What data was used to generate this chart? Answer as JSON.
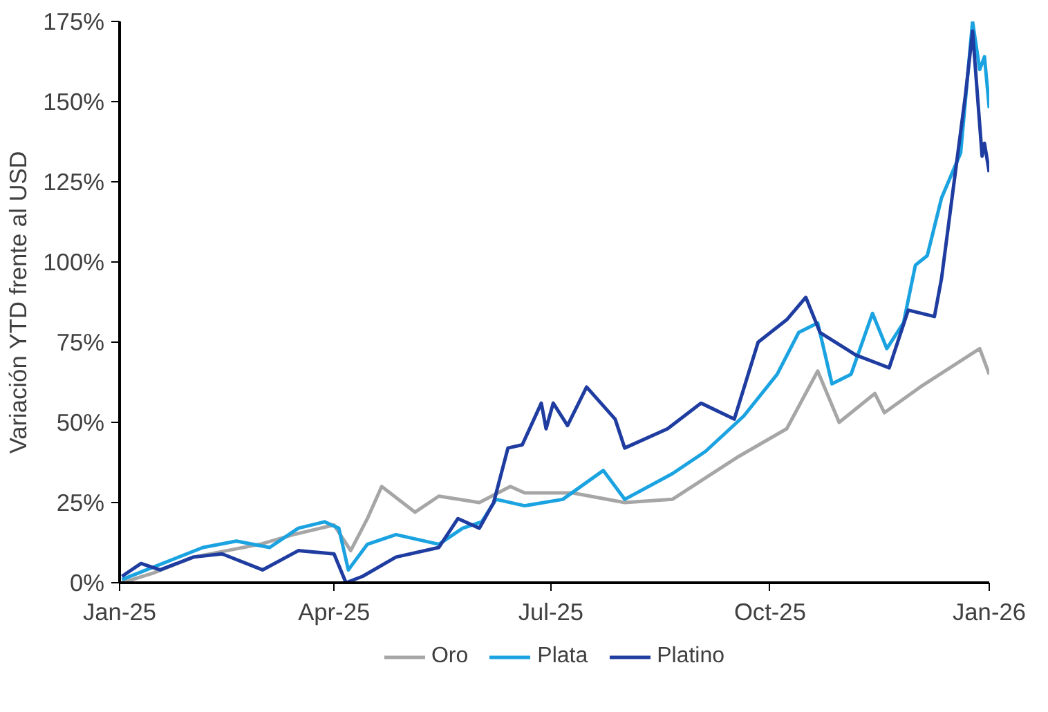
{
  "chart_data": {
    "type": "line",
    "ylabel": "Variación YTD frente al USD",
    "xlim": [
      "2025-01-01",
      "2026-01-01"
    ],
    "xticks": [
      {
        "value": "2025-01-01",
        "label": "Jan-25"
      },
      {
        "value": "2025-04-01",
        "label": "Apr-25"
      },
      {
        "value": "2025-07-01",
        "label": "Jul-25"
      },
      {
        "value": "2025-10-01",
        "label": "Oct-25"
      },
      {
        "value": "2026-01-01",
        "label": "Jan-26"
      }
    ],
    "ylim": [
      0,
      175
    ],
    "yticks": [
      {
        "value": 0,
        "label": "0%"
      },
      {
        "value": 25,
        "label": "25%"
      },
      {
        "value": 50,
        "label": "50%"
      },
      {
        "value": 75,
        "label": "75%"
      },
      {
        "value": 100,
        "label": "100%"
      },
      {
        "value": 125,
        "label": "125%"
      },
      {
        "value": 150,
        "label": "150%"
      },
      {
        "value": 175,
        "label": "175%"
      }
    ],
    "grid": false,
    "legend": "bottom",
    "line_style": "solid",
    "series": [
      {
        "name": "Oro",
        "color": "#a6a6a6",
        "x": [
          "2025-01-02",
          "2025-01-15",
          "2025-02-01",
          "2025-02-15",
          "2025-03-01",
          "2025-03-15",
          "2025-04-01",
          "2025-04-08",
          "2025-04-15",
          "2025-04-21",
          "2025-05-05",
          "2025-05-15",
          "2025-06-01",
          "2025-06-14",
          "2025-06-20",
          "2025-07-10",
          "2025-08-01",
          "2025-08-21",
          "2025-09-17",
          "2025-10-08",
          "2025-10-21",
          "2025-10-30",
          "2025-11-14",
          "2025-11-18",
          "2025-12-03",
          "2025-12-28",
          "2026-01-01"
        ],
        "values": [
          0,
          3,
          8,
          10,
          12,
          15,
          18,
          10,
          20,
          30,
          22,
          27,
          25,
          30,
          28,
          28,
          25,
          26,
          39,
          48,
          66,
          50,
          59,
          53,
          61,
          73,
          65
        ]
      },
      {
        "name": "Plata",
        "color": "#1aa3e0",
        "x": [
          "2025-01-02",
          "2025-02-05",
          "2025-02-19",
          "2025-03-05",
          "2025-03-17",
          "2025-03-28",
          "2025-04-03",
          "2025-04-07",
          "2025-04-15",
          "2025-04-27",
          "2025-05-15",
          "2025-05-25",
          "2025-06-02",
          "2025-06-08",
          "2025-06-20",
          "2025-07-06",
          "2025-07-23",
          "2025-08-01",
          "2025-08-21",
          "2025-09-04",
          "2025-09-20",
          "2025-10-04",
          "2025-10-13",
          "2025-10-21",
          "2025-10-27",
          "2025-11-04",
          "2025-11-13",
          "2025-11-19",
          "2025-11-26",
          "2025-12-01",
          "2025-12-06",
          "2025-12-12",
          "2025-12-20",
          "2025-12-25",
          "2025-12-28",
          "2025-12-30",
          "2026-01-01"
        ],
        "values": [
          1,
          11,
          13,
          11,
          17,
          19,
          17,
          4,
          12,
          15,
          12,
          17,
          19,
          26,
          24,
          26,
          35,
          26,
          34,
          41,
          52,
          65,
          78,
          81,
          62,
          65,
          84,
          73,
          81,
          99,
          102,
          120,
          134,
          175,
          160,
          164,
          148
        ]
      },
      {
        "name": "Platino",
        "color": "#1f3ca0",
        "x": [
          "2025-01-02",
          "2025-01-10",
          "2025-01-18",
          "2025-02-01",
          "2025-02-13",
          "2025-03-02",
          "2025-03-17",
          "2025-04-01",
          "2025-04-06",
          "2025-04-13",
          "2025-04-27",
          "2025-05-15",
          "2025-05-23",
          "2025-06-01",
          "2025-06-07",
          "2025-06-13",
          "2025-06-19",
          "2025-06-27",
          "2025-06-29",
          "2025-07-02",
          "2025-07-08",
          "2025-07-16",
          "2025-07-28",
          "2025-08-01",
          "2025-08-19",
          "2025-09-02",
          "2025-09-16",
          "2025-09-26",
          "2025-10-08",
          "2025-10-16",
          "2025-10-22",
          "2025-11-06",
          "2025-11-20",
          "2025-11-28",
          "2025-12-09",
          "2025-12-12",
          "2025-12-22",
          "2025-12-25",
          "2025-12-29",
          "2025-12-30",
          "2026-01-01"
        ],
        "values": [
          2,
          6,
          4,
          8,
          9,
          4,
          10,
          9,
          0,
          2,
          8,
          11,
          20,
          17,
          25,
          42,
          43,
          56,
          48,
          56,
          49,
          61,
          51,
          42,
          48,
          56,
          51,
          75,
          82,
          89,
          78,
          71,
          67,
          85,
          83,
          95,
          152,
          172,
          133,
          137,
          128
        ]
      }
    ]
  }
}
